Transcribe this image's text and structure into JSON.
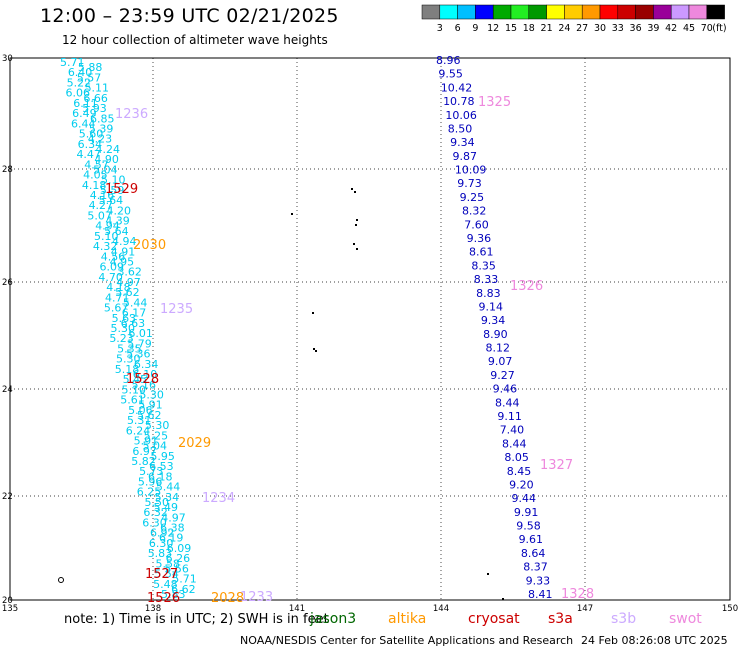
{
  "header": {
    "title": "12:00 – 23:59 UTC 02/21/2025",
    "subtitle": "12 hour collection of altimeter wave heights"
  },
  "colorbar": {
    "labels": [
      "3",
      "6",
      "9",
      "12",
      "15",
      "18",
      "21",
      "24",
      "27",
      "30",
      "33",
      "36",
      "39",
      "42",
      "45",
      "70"
    ],
    "unit": "(ft)",
    "colors": [
      "#7f7f7f",
      "#00ffff",
      "#00bfff",
      "#0000ff",
      "#00aa00",
      "#22ee22",
      "#009900",
      "#ffff00",
      "#ffcc00",
      "#ff9900",
      "#ff0000",
      "#cc0000",
      "#990000",
      "#990099",
      "#cc99ff",
      "#ee88dd",
      "#000000"
    ]
  },
  "axes": {
    "x_ticks": [
      "135",
      "138",
      "141",
      "144",
      "147",
      "150"
    ],
    "y_ticks": [
      "30",
      "28",
      "26",
      "24",
      "22",
      "20"
    ]
  },
  "legend": {
    "note": "note: 1) Time is in UTC; 2) SWH is in feet",
    "satellites": [
      {
        "name": "jason3",
        "color": "#006600"
      },
      {
        "name": "altika",
        "color": "#ff9900"
      },
      {
        "name": "cryosat",
        "color": "#cc0000"
      },
      {
        "name": "s3a",
        "color": "#cc0000"
      },
      {
        "name": "s3b",
        "color": "#ccaaff"
      },
      {
        "name": "swot",
        "color": "#ee88dd"
      }
    ],
    "credit": "NOAA/NESDIS Center for Satellite Applications and Research",
    "timestamp": "24 Feb 08:26:08 UTC 2025"
  },
  "colors": {
    "cyan": "#00ccee",
    "blue": "#0000bb",
    "teal": "#00aadd"
  },
  "tracks": {
    "track_a": {
      "color": "#00ccee",
      "values": [
        "5.71",
        "5.88",
        "6.40",
        "5.57",
        "5.22",
        "5.11",
        "6.06",
        "6.66",
        "6.11",
        "5.93",
        "6.49",
        "6.85",
        "6.44",
        "5.39",
        "5.60",
        "4.23",
        "6.34",
        "4.24",
        "4.47",
        "4.90",
        "4.57",
        "5.04",
        "4.05",
        "5.10",
        "4.18",
        "5.59",
        "4.16",
        "5.64",
        "4.27",
        "4.20",
        "5.07",
        "4.39",
        "4.94",
        "5.64",
        "5.10",
        "4.94",
        "4.32",
        "4.91",
        "4.56",
        "4.95",
        "6.09",
        "3.62",
        "4.70",
        "4.97",
        "4.18",
        "5.62",
        "4.71",
        "5.44",
        "5.67",
        "6.17",
        "5.63",
        "6.63",
        "5.30",
        "6.01",
        "5.23",
        "5.79",
        "5.35",
        "5.36",
        "5.30",
        "6.34",
        "5.18",
        "6.10",
        "5.45",
        "5.16",
        "5.10",
        "5.30",
        "5.61",
        "5.91",
        "5.06",
        "5.62",
        "5.31",
        "5.30",
        "6.24",
        "5.25",
        "5.91",
        "5.04",
        "6.97",
        "5.95",
        "5.82",
        "6.53",
        "5.73",
        "6.18",
        "5.96",
        "5.44",
        "6.25",
        "5.34",
        "5.50",
        "5.49",
        "6.32",
        "4.97",
        "6.30",
        "6.38",
        "6.92",
        "6.19",
        "6.30",
        "6.09",
        "5.83",
        "6.26",
        "5.58",
        "5.56",
        "5.54",
        "5.71",
        "5.48",
        "6.62",
        "5.83"
      ]
    },
    "track_b": {
      "color": "#0000bb",
      "values": [
        "8.96",
        "9.55",
        "10.42",
        "10.78",
        "10.06",
        "8.50",
        "9.34",
        "9.87",
        "10.09",
        "9.73",
        "9.25",
        "8.32",
        "7.60",
        "9.36",
        "8.61",
        "8.35",
        "8.33",
        "8.83",
        "9.14",
        "9.34",
        "8.90",
        "8.12",
        "9.07",
        "9.27",
        "9.46",
        "8.44",
        "9.11",
        "7.40",
        "8.44",
        "8.05",
        "8.45",
        "9.20",
        "9.44",
        "9.91",
        "9.58",
        "9.61",
        "8.64",
        "8.37",
        "9.33",
        "8.41"
      ]
    },
    "labels": [
      {
        "id": "1236",
        "color": "#ccaaff"
      },
      {
        "id": "1529",
        "color": "#cc0000"
      },
      {
        "id": "2030",
        "color": "#ff9900"
      },
      {
        "id": "1235",
        "color": "#ccaaff"
      },
      {
        "id": "1528",
        "color": "#cc0000"
      },
      {
        "id": "2029",
        "color": "#ff9900"
      },
      {
        "id": "1234",
        "color": "#ccaaff"
      },
      {
        "id": "1527",
        "color": "#cc0000"
      },
      {
        "id": "1526",
        "color": "#cc0000"
      },
      {
        "id": "2028",
        "color": "#ff9900"
      },
      {
        "id": "1233",
        "color": "#ccaaff"
      },
      {
        "id": "1325",
        "color": "#ee88dd"
      },
      {
        "id": "1326",
        "color": "#ee88dd"
      },
      {
        "id": "1327",
        "color": "#ee88dd"
      },
      {
        "id": "1328",
        "color": "#ee88dd"
      }
    ]
  }
}
